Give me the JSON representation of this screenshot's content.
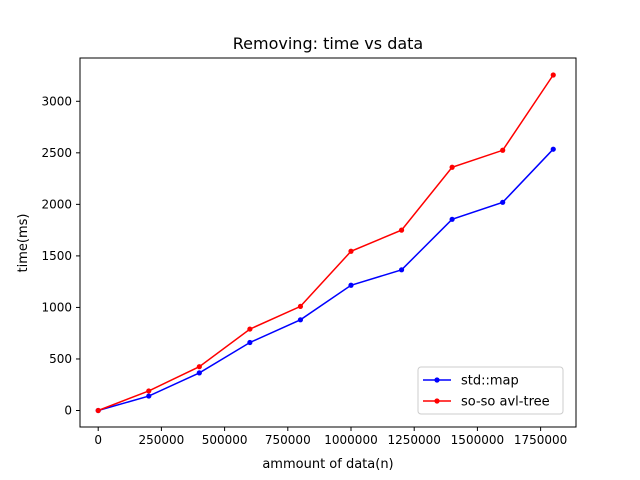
{
  "chart_data": {
    "type": "line",
    "title": "Removing: time vs data",
    "xlabel": "ammount of data(n)",
    "ylabel": "time(ms)",
    "xlim": [
      -72000,
      1890000
    ],
    "ylim": [
      -160,
      3420
    ],
    "xticks": [
      0,
      250000,
      500000,
      750000,
      1000000,
      1250000,
      1500000,
      1750000
    ],
    "xtick_labels": [
      "0",
      "250000",
      "500000",
      "750000",
      "1000000",
      "1250000",
      "1500000",
      "1750000"
    ],
    "yticks": [
      0,
      500,
      1000,
      1500,
      2000,
      2500,
      3000
    ],
    "ytick_labels": [
      "0",
      "500",
      "1000",
      "1500",
      "2000",
      "2500",
      "3000"
    ],
    "grid": false,
    "legend_position": "lower-right",
    "x": [
      0,
      200000,
      400000,
      600000,
      800000,
      1000000,
      1200000,
      1400000,
      1600000,
      1800000
    ],
    "series": [
      {
        "name": "std::map",
        "color": "#0000ff",
        "marker": "dot",
        "values": [
          0,
          140,
          365,
          660,
          880,
          1215,
          1365,
          1855,
          2020,
          2535
        ]
      },
      {
        "name": "so-so avl-tree",
        "color": "#ff0000",
        "marker": "dot",
        "values": [
          0,
          190,
          425,
          790,
          1010,
          1545,
          1750,
          2360,
          2525,
          3255
        ]
      }
    ]
  }
}
